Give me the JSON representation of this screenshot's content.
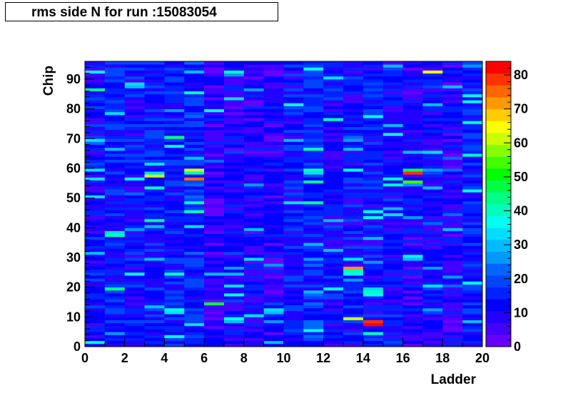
{
  "title": "rms side N for run :15083054",
  "chart_data": {
    "type": "heatmap",
    "title": "rms side N for run :15083054",
    "xlabel": "Ladder",
    "ylabel": "Chip",
    "xlim": [
      0,
      20
    ],
    "ylim": [
      0,
      96
    ],
    "zlim": [
      0,
      84
    ],
    "x_ticks": [
      "0",
      "2",
      "4",
      "6",
      "8",
      "10",
      "12",
      "14",
      "16",
      "18",
      "20"
    ],
    "y_ticks": [
      "0",
      "10",
      "20",
      "30",
      "40",
      "50",
      "60",
      "70",
      "80",
      "90"
    ],
    "z_ticks": [
      "0",
      "10",
      "20",
      "30",
      "40",
      "50",
      "60",
      "70",
      "80"
    ],
    "nx": 20,
    "ny": 96,
    "colormap": [
      "#6600ff",
      "#4400ff",
      "#2200ff",
      "#0000ff",
      "#0022ff",
      "#0044ff",
      "#0066ff",
      "#0099ff",
      "#00bbff",
      "#00ddff",
      "#00ffee",
      "#00ffbb",
      "#00ff88",
      "#00ff44",
      "#00ff00",
      "#44ff00",
      "#88ff00",
      "#ccff00",
      "#ffff00",
      "#ffcc00",
      "#ff9900",
      "#ff6600",
      "#ff3300",
      "#ff0000"
    ],
    "base_by_ladder": [
      12,
      14,
      12,
      14,
      14,
      15,
      8,
      10,
      10,
      8,
      13,
      15,
      12,
      12,
      12,
      11,
      8,
      11,
      9,
      14
    ],
    "highlights": [
      {
        "ladder": 3,
        "chip": 57,
        "value": 62
      },
      {
        "ladder": 5,
        "chip": 56,
        "value": 74
      },
      {
        "ladder": 5,
        "chip": 59,
        "value": 60
      },
      {
        "ladder": 13,
        "chip": 26,
        "value": 73
      },
      {
        "ladder": 13,
        "chip": 9,
        "value": 62
      },
      {
        "ladder": 14,
        "chip": 7,
        "value": 82
      },
      {
        "ladder": 14,
        "chip": 8,
        "value": 80
      },
      {
        "ladder": 16,
        "chip": 58,
        "value": 78
      },
      {
        "ladder": 16,
        "chip": 59,
        "value": 48
      },
      {
        "ladder": 16,
        "chip": 55,
        "value": 55
      },
      {
        "ladder": 17,
        "chip": 92,
        "value": 64
      },
      {
        "ladder": 3,
        "chip": 42,
        "value": 42
      },
      {
        "ladder": 1,
        "chip": 37,
        "value": 40
      },
      {
        "ladder": 11,
        "chip": 48,
        "value": 45
      },
      {
        "ladder": 14,
        "chip": 18,
        "value": 40
      },
      {
        "ladder": 6,
        "chip": 14,
        "value": 46
      }
    ]
  }
}
